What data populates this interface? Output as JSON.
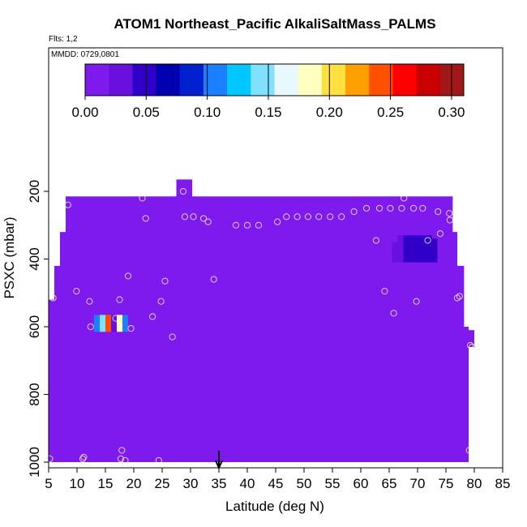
{
  "chart_data": {
    "type": "heatmap",
    "title": "ATOM1 Northeast_Pacific AlkaliSaltMass_PALMS",
    "flights_label": "Flts: 1,2",
    "mmdd_label": "MMDD: 0729,0801",
    "xlabel": "Latitude (deg N)",
    "ylabel": "PSXC (mbar)",
    "xlim": [
      5,
      85
    ],
    "ylim": [
      1000,
      0
    ],
    "x_ticks": [
      5,
      10,
      15,
      20,
      25,
      30,
      35,
      40,
      45,
      50,
      55,
      60,
      65,
      70,
      75,
      80,
      85
    ],
    "y_ticks": [
      200,
      400,
      600,
      800,
      1000
    ],
    "colorbar": {
      "range": [
        0,
        0.31
      ],
      "ticks": [
        0.0,
        0.05,
        0.1,
        0.15,
        0.2,
        0.25,
        0.3
      ],
      "tick_labels": [
        "0.00",
        "0.05",
        "0.10",
        "0.15",
        "0.20",
        "0.25",
        "0.30"
      ],
      "colors": [
        "#7f1aee",
        "#6a10de",
        "#3000c8",
        "#0000b0",
        "#0020d0",
        "#1a80ff",
        "#00c8ff",
        "#80e0ff",
        "#e8f8ff",
        "#ffffc0",
        "#ffe040",
        "#ffa000",
        "#ff5000",
        "#ff0000",
        "#c80000",
        "#a01818"
      ]
    },
    "background_value": 0.0,
    "field_outline": [
      [
        27.5,
        165
      ],
      [
        30.3,
        165
      ],
      [
        30.3,
        215
      ],
      [
        76.2,
        215
      ],
      [
        76.2,
        320
      ],
      [
        77,
        320
      ],
      [
        77,
        420
      ],
      [
        78.2,
        420
      ],
      [
        78.2,
        600
      ],
      [
        79,
        600
      ],
      [
        79,
        1000
      ],
      [
        5,
        1000
      ],
      [
        5,
        520
      ],
      [
        6,
        520
      ],
      [
        6,
        420
      ],
      [
        7,
        420
      ],
      [
        7,
        320
      ],
      [
        8,
        320
      ],
      [
        8,
        215
      ],
      [
        27.5,
        215
      ]
    ],
    "field_notches": [
      [
        79,
        610,
        80,
        660
      ]
    ],
    "anomalies": [
      {
        "x0": 13.0,
        "x1": 14.0,
        "p0": 565,
        "p1": 615,
        "value": 0.1
      },
      {
        "x0": 14.0,
        "x1": 15.0,
        "p0": 565,
        "p1": 615,
        "value": 0.14
      },
      {
        "x0": 15.0,
        "x1": 16.0,
        "p0": 565,
        "p1": 615,
        "value": 0.25
      },
      {
        "x0": 16.0,
        "x1": 17.0,
        "p0": 565,
        "p1": 615,
        "value": 0.03
      },
      {
        "x0": 17.0,
        "x1": 18.0,
        "p0": 565,
        "p1": 615,
        "value": 0.19
      },
      {
        "x0": 18.0,
        "x1": 19.0,
        "p0": 565,
        "p1": 615,
        "value": 0.11
      },
      {
        "x0": 64.5,
        "x1": 65.5,
        "p0": 350,
        "p1": 460,
        "value": 0.012
      },
      {
        "x0": 65.5,
        "x1": 66.5,
        "p0": 350,
        "p1": 460,
        "value": 0.02
      },
      {
        "x0": 66.5,
        "x1": 67.5,
        "p0": 330,
        "p1": 460,
        "value": 0.03
      },
      {
        "x0": 67.5,
        "x1": 68.5,
        "p0": 330,
        "p1": 410,
        "value": 0.04
      },
      {
        "x0": 68.5,
        "x1": 72.5,
        "p0": 330,
        "p1": 410,
        "value": 0.05
      },
      {
        "x0": 72.5,
        "x1": 73.5,
        "p0": 340,
        "p1": 410,
        "value": 0.045
      },
      {
        "x0": 64.5,
        "x1": 73.5,
        "p0": 410,
        "p1": 460,
        "value": 0.015
      }
    ],
    "flight_points": [
      [
        5.2,
        990
      ],
      [
        5.8,
        515
      ],
      [
        8.4,
        240
      ],
      [
        9.9,
        495
      ],
      [
        11,
        990
      ],
      [
        11.2,
        985
      ],
      [
        12.2,
        525
      ],
      [
        12.4,
        600
      ],
      [
        16.8,
        575
      ],
      [
        17.5,
        520
      ],
      [
        17.7,
        990
      ],
      [
        17.9,
        965
      ],
      [
        18.5,
        995
      ],
      [
        19,
        450
      ],
      [
        19.5,
        605
      ],
      [
        21.5,
        220
      ],
      [
        22.1,
        280
      ],
      [
        23.3,
        570
      ],
      [
        24.4,
        995
      ],
      [
        24.8,
        525
      ],
      [
        25.5,
        465
      ],
      [
        26.8,
        630
      ],
      [
        28.7,
        200
      ],
      [
        29,
        275
      ],
      [
        30.5,
        275
      ],
      [
        31,
        200
      ],
      [
        32.3,
        280
      ],
      [
        33.1,
        290
      ],
      [
        34.1,
        460
      ],
      [
        38,
        300
      ],
      [
        40,
        300
      ],
      [
        42,
        300
      ],
      [
        45.3,
        290
      ],
      [
        46.9,
        275
      ],
      [
        48.8,
        275
      ],
      [
        50.7,
        275
      ],
      [
        52.6,
        275
      ],
      [
        54.6,
        275
      ],
      [
        56.6,
        275
      ],
      [
        58.8,
        260
      ],
      [
        61,
        250
      ],
      [
        62.7,
        345
      ],
      [
        63.3,
        250
      ],
      [
        64.2,
        495
      ],
      [
        65.2,
        250
      ],
      [
        65.8,
        560
      ],
      [
        67.2,
        250
      ],
      [
        67.6,
        220
      ],
      [
        69.3,
        250
      ],
      [
        69.8,
        525
      ],
      [
        70.9,
        250
      ],
      [
        71.8,
        345
      ],
      [
        73.6,
        260
      ],
      [
        74,
        325
      ],
      [
        75.6,
        265
      ],
      [
        75.7,
        285
      ],
      [
        77,
        515
      ],
      [
        77.4,
        510
      ],
      [
        79.3,
        655
      ],
      [
        79.6,
        660
      ],
      [
        79.1,
        965
      ]
    ],
    "arrow_x": 35
  }
}
